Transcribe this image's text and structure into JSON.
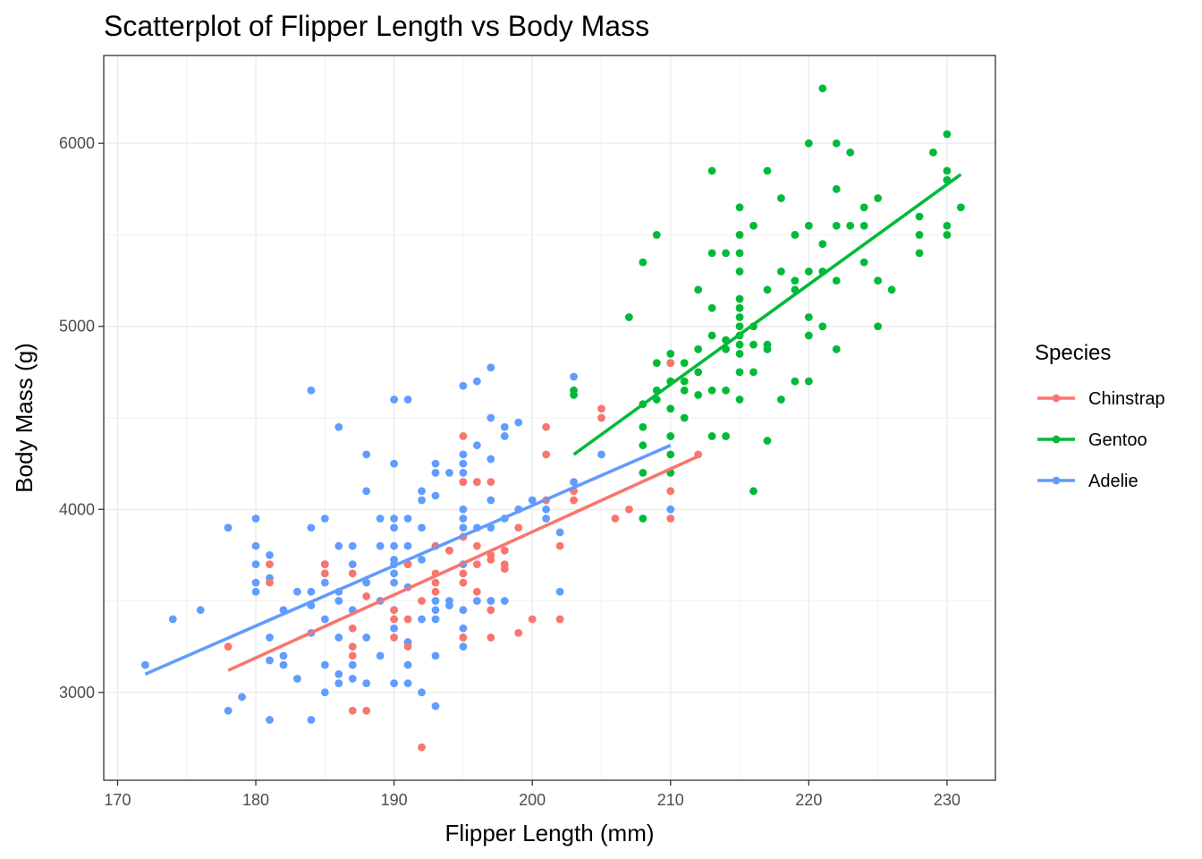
{
  "chart_data": {
    "type": "scatter",
    "title": "Scatterplot of Flipper Length vs Body Mass",
    "xlabel": "Flipper Length (mm)",
    "ylabel": "Body Mass (g)",
    "xlim": [
      169,
      233.5
    ],
    "ylim": [
      2520,
      6480
    ],
    "xticks": [
      170,
      180,
      190,
      200,
      210,
      220,
      230
    ],
    "yticks": [
      3000,
      4000,
      5000,
      6000
    ],
    "grid": true,
    "legend": {
      "title": "Species",
      "placement": "right"
    },
    "series": [
      {
        "name": "Chinstrap",
        "color": "#F8766D",
        "trend": [
          [
            178,
            3120
          ],
          [
            212,
            4290
          ]
        ],
        "points": [
          [
            178,
            3250
          ],
          [
            181,
            3700
          ],
          [
            181,
            3600
          ],
          [
            185,
            3700
          ],
          [
            185,
            3650
          ],
          [
            187,
            3650
          ],
          [
            187,
            3350
          ],
          [
            187,
            3250
          ],
          [
            187,
            3200
          ],
          [
            187,
            2900
          ],
          [
            188,
            3525
          ],
          [
            188,
            2900
          ],
          [
            190,
            3450
          ],
          [
            190,
            3400
          ],
          [
            190,
            3300
          ],
          [
            191,
            3700
          ],
          [
            191,
            3400
          ],
          [
            191,
            3250
          ],
          [
            192,
            3500
          ],
          [
            192,
            2700
          ],
          [
            193,
            3800
          ],
          [
            193,
            3650
          ],
          [
            193,
            3600
          ],
          [
            193,
            3550
          ],
          [
            194,
            3775
          ],
          [
            195,
            4400
          ],
          [
            195,
            4150
          ],
          [
            195,
            3850
          ],
          [
            195,
            3650
          ],
          [
            195,
            3600
          ],
          [
            195,
            3300
          ],
          [
            196,
            4150
          ],
          [
            196,
            3800
          ],
          [
            196,
            3700
          ],
          [
            196,
            3550
          ],
          [
            197,
            4150
          ],
          [
            197,
            3750
          ],
          [
            197,
            3725
          ],
          [
            197,
            3450
          ],
          [
            197,
            3300
          ],
          [
            198,
            3775
          ],
          [
            198,
            3700
          ],
          [
            198,
            3675
          ],
          [
            199,
            3900
          ],
          [
            199,
            3325
          ],
          [
            200,
            3400
          ],
          [
            201,
            4450
          ],
          [
            201,
            4300
          ],
          [
            201,
            4050
          ],
          [
            202,
            3800
          ],
          [
            202,
            3400
          ],
          [
            203,
            4100
          ],
          [
            203,
            4050
          ],
          [
            205,
            4550
          ],
          [
            205,
            4500
          ],
          [
            206,
            3950
          ],
          [
            207,
            4000
          ],
          [
            210,
            4800
          ],
          [
            210,
            4100
          ],
          [
            210,
            3950
          ],
          [
            212,
            4300
          ]
        ]
      },
      {
        "name": "Gentoo",
        "color": "#00BA38",
        "trend": [
          [
            203,
            4300
          ],
          [
            231,
            5830
          ]
        ],
        "points": [
          [
            203,
            4625
          ],
          [
            203,
            4650
          ],
          [
            207,
            5050
          ],
          [
            208,
            5350
          ],
          [
            208,
            4575
          ],
          [
            208,
            4450
          ],
          [
            208,
            4350
          ],
          [
            208,
            4200
          ],
          [
            208,
            3950
          ],
          [
            209,
            5500
          ],
          [
            209,
            4800
          ],
          [
            209,
            4650
          ],
          [
            209,
            4600
          ],
          [
            210,
            4850
          ],
          [
            210,
            4800
          ],
          [
            210,
            4700
          ],
          [
            210,
            4550
          ],
          [
            210,
            4400
          ],
          [
            210,
            4300
          ],
          [
            210,
            4200
          ],
          [
            211,
            4800
          ],
          [
            211,
            4700
          ],
          [
            211,
            4650
          ],
          [
            211,
            4500
          ],
          [
            212,
            5200
          ],
          [
            212,
            4875
          ],
          [
            212,
            4750
          ],
          [
            212,
            4625
          ],
          [
            213,
            5850
          ],
          [
            213,
            5400
          ],
          [
            213,
            5100
          ],
          [
            213,
            4950
          ],
          [
            213,
            4650
          ],
          [
            213,
            4400
          ],
          [
            214,
            5400
          ],
          [
            214,
            4925
          ],
          [
            214,
            4875
          ],
          [
            214,
            4650
          ],
          [
            214,
            4400
          ],
          [
            215,
            5650
          ],
          [
            215,
            5500
          ],
          [
            215,
            5400
          ],
          [
            215,
            5300
          ],
          [
            215,
            5150
          ],
          [
            215,
            5100
          ],
          [
            215,
            5050
          ],
          [
            215,
            5000
          ],
          [
            215,
            4950
          ],
          [
            215,
            4900
          ],
          [
            215,
            4850
          ],
          [
            215,
            4750
          ],
          [
            215,
            4600
          ],
          [
            216,
            5550
          ],
          [
            216,
            5000
          ],
          [
            216,
            4900
          ],
          [
            216,
            4750
          ],
          [
            216,
            4100
          ],
          [
            217,
            5850
          ],
          [
            217,
            5200
          ],
          [
            217,
            4900
          ],
          [
            217,
            4875
          ],
          [
            217,
            4375
          ],
          [
            218,
            5700
          ],
          [
            218,
            5300
          ],
          [
            218,
            4600
          ],
          [
            219,
            5500
          ],
          [
            219,
            5250
          ],
          [
            219,
            5200
          ],
          [
            219,
            4700
          ],
          [
            220,
            6000
          ],
          [
            220,
            5550
          ],
          [
            220,
            5300
          ],
          [
            220,
            5050
          ],
          [
            220,
            4950
          ],
          [
            220,
            4700
          ],
          [
            221,
            6300
          ],
          [
            221,
            5450
          ],
          [
            221,
            5300
          ],
          [
            221,
            5000
          ],
          [
            222,
            6000
          ],
          [
            222,
            5750
          ],
          [
            222,
            5550
          ],
          [
            222,
            5250
          ],
          [
            222,
            4875
          ],
          [
            223,
            5950
          ],
          [
            223,
            5550
          ],
          [
            224,
            5650
          ],
          [
            224,
            5550
          ],
          [
            224,
            5350
          ],
          [
            225,
            5700
          ],
          [
            225,
            5250
          ],
          [
            225,
            5000
          ],
          [
            226,
            5200
          ],
          [
            228,
            5600
          ],
          [
            228,
            5500
          ],
          [
            228,
            5400
          ],
          [
            229,
            5950
          ],
          [
            230,
            6050
          ],
          [
            230,
            5850
          ],
          [
            230,
            5800
          ],
          [
            230,
            5550
          ],
          [
            230,
            5500
          ],
          [
            231,
            5650
          ]
        ]
      },
      {
        "name": "Adelie",
        "color": "#619CFF",
        "trend": [
          [
            172,
            3100
          ],
          [
            210,
            4350
          ]
        ],
        "points": [
          [
            172,
            3150
          ],
          [
            174,
            3400
          ],
          [
            176,
            3450
          ],
          [
            178,
            3900
          ],
          [
            178,
            2900
          ],
          [
            179,
            2975
          ],
          [
            180,
            3950
          ],
          [
            180,
            3800
          ],
          [
            180,
            3700
          ],
          [
            180,
            3600
          ],
          [
            180,
            3550
          ],
          [
            181,
            3750
          ],
          [
            181,
            3625
          ],
          [
            181,
            3300
          ],
          [
            181,
            3175
          ],
          [
            181,
            2850
          ],
          [
            182,
            3450
          ],
          [
            182,
            3200
          ],
          [
            182,
            3150
          ],
          [
            183,
            3550
          ],
          [
            183,
            3075
          ],
          [
            184,
            4650
          ],
          [
            184,
            3900
          ],
          [
            184,
            3550
          ],
          [
            184,
            3475
          ],
          [
            184,
            3325
          ],
          [
            184,
            2850
          ],
          [
            185,
            3950
          ],
          [
            185,
            3700
          ],
          [
            185,
            3600
          ],
          [
            185,
            3400
          ],
          [
            185,
            3150
          ],
          [
            185,
            3000
          ],
          [
            186,
            4450
          ],
          [
            186,
            3800
          ],
          [
            186,
            3550
          ],
          [
            186,
            3500
          ],
          [
            186,
            3300
          ],
          [
            186,
            3100
          ],
          [
            186,
            3050
          ],
          [
            187,
            3800
          ],
          [
            187,
            3700
          ],
          [
            187,
            3450
          ],
          [
            187,
            3150
          ],
          [
            187,
            3075
          ],
          [
            188,
            4300
          ],
          [
            188,
            4100
          ],
          [
            188,
            3600
          ],
          [
            188,
            3300
          ],
          [
            188,
            3050
          ],
          [
            189,
            3950
          ],
          [
            189,
            3800
          ],
          [
            189,
            3500
          ],
          [
            189,
            3200
          ],
          [
            190,
            4600
          ],
          [
            190,
            4250
          ],
          [
            190,
            3950
          ],
          [
            190,
            3900
          ],
          [
            190,
            3800
          ],
          [
            190,
            3725
          ],
          [
            190,
            3700
          ],
          [
            190,
            3650
          ],
          [
            190,
            3600
          ],
          [
            190,
            3450
          ],
          [
            190,
            3350
          ],
          [
            190,
            3050
          ],
          [
            191,
            4600
          ],
          [
            191,
            3950
          ],
          [
            191,
            3800
          ],
          [
            191,
            3700
          ],
          [
            191,
            3575
          ],
          [
            191,
            3275
          ],
          [
            191,
            3150
          ],
          [
            191,
            3050
          ],
          [
            192,
            4100
          ],
          [
            192,
            4050
          ],
          [
            192,
            3900
          ],
          [
            192,
            3725
          ],
          [
            192,
            3400
          ],
          [
            192,
            3000
          ],
          [
            193,
            4250
          ],
          [
            193,
            4200
          ],
          [
            193,
            4075
          ],
          [
            193,
            3800
          ],
          [
            193,
            3500
          ],
          [
            193,
            3450
          ],
          [
            193,
            3400
          ],
          [
            193,
            3200
          ],
          [
            193,
            2925
          ],
          [
            194,
            4200
          ],
          [
            194,
            3775
          ],
          [
            194,
            3500
          ],
          [
            194,
            3475
          ],
          [
            195,
            4675
          ],
          [
            195,
            4300
          ],
          [
            195,
            4250
          ],
          [
            195,
            4200
          ],
          [
            195,
            4150
          ],
          [
            195,
            4000
          ],
          [
            195,
            3950
          ],
          [
            195,
            3900
          ],
          [
            195,
            3700
          ],
          [
            195,
            3450
          ],
          [
            195,
            3350
          ],
          [
            195,
            3300
          ],
          [
            195,
            3250
          ],
          [
            196,
            4700
          ],
          [
            196,
            4350
          ],
          [
            196,
            4150
          ],
          [
            196,
            3900
          ],
          [
            196,
            3500
          ],
          [
            197,
            4775
          ],
          [
            197,
            4500
          ],
          [
            197,
            4275
          ],
          [
            197,
            4050
          ],
          [
            197,
            3900
          ],
          [
            197,
            3500
          ],
          [
            198,
            4450
          ],
          [
            198,
            4400
          ],
          [
            198,
            3950
          ],
          [
            198,
            3500
          ],
          [
            199,
            4475
          ],
          [
            199,
            4000
          ],
          [
            200,
            4050
          ],
          [
            201,
            4000
          ],
          [
            201,
            3950
          ],
          [
            202,
            3875
          ],
          [
            202,
            3550
          ],
          [
            203,
            4725
          ],
          [
            203,
            4150
          ],
          [
            205,
            4300
          ],
          [
            210,
            4000
          ]
        ]
      }
    ]
  }
}
